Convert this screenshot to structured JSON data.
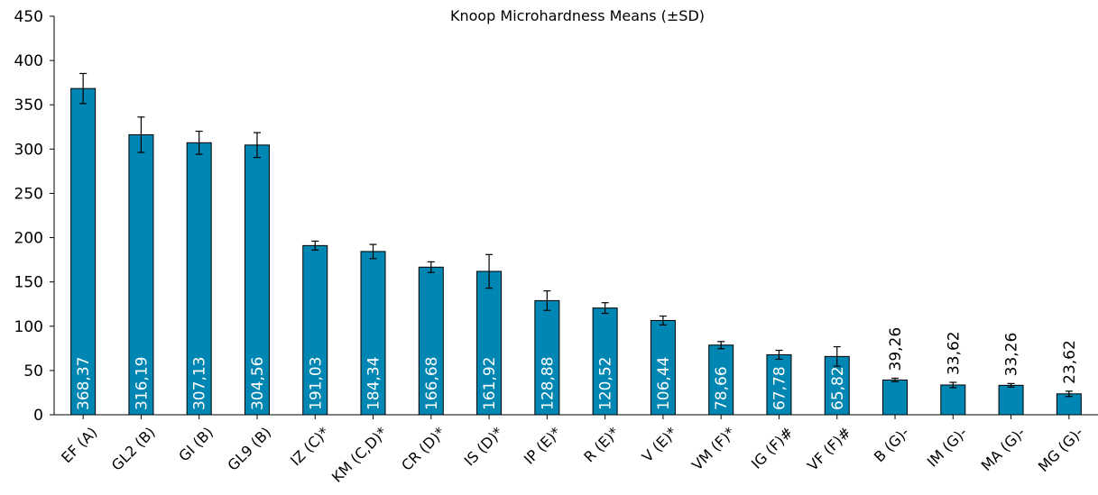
{
  "chart_data": {
    "type": "bar",
    "title": "Knoop Microhardness Means (±SD)",
    "xlabel": "",
    "ylabel": "",
    "ylim": [
      0,
      450
    ],
    "yticks": [
      0,
      50,
      100,
      150,
      200,
      250,
      300,
      350,
      400,
      450
    ],
    "grid": false,
    "legend": "none",
    "bar_color": "#0086b3",
    "categories": [
      "EF (A)",
      "GL2 (B)",
      "GI (B)",
      "GL9 (B)",
      "IZ (C)*",
      "KM (C,D)*",
      "CR (D)*",
      "IS (D)*",
      "IP (E)*",
      "R (E)*",
      "V (E)*",
      "VM (F)*",
      "IG (F)#",
      "VF (F)#",
      "B (G)-",
      "IM (G)-",
      "MA (G)-",
      "MG (G)-"
    ],
    "values": [
      368.37,
      316.19,
      307.13,
      304.56,
      191.03,
      184.34,
      166.68,
      161.92,
      128.88,
      120.52,
      106.44,
      78.66,
      67.78,
      65.82,
      39.26,
      33.62,
      33.26,
      23.62
    ],
    "errors": [
      17,
      20,
      13,
      14,
      5,
      8,
      6,
      19,
      11,
      6,
      5,
      4,
      5,
      11,
      2,
      3,
      2,
      3
    ],
    "value_labels": [
      "368,37",
      "316,19",
      "307,13",
      "304,56",
      "191,03",
      "184,34",
      "166,68",
      "161,92",
      "128,88",
      "120,52",
      "106,44",
      "78,66",
      "67,78",
      "65,82",
      "39,26",
      "33,62",
      "33,26",
      "23,62"
    ]
  }
}
